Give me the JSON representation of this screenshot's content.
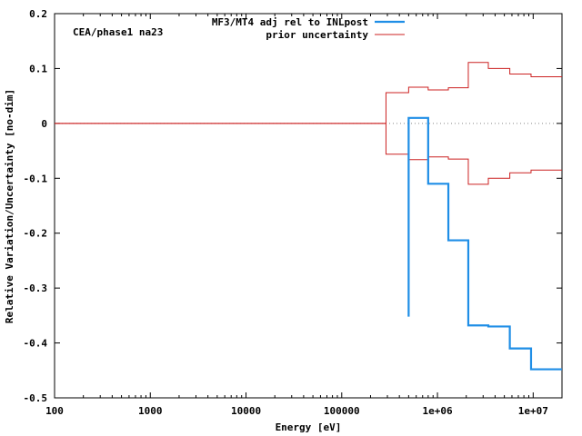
{
  "chart_data": {
    "type": "line",
    "title": "CEA/phase1 na23",
    "xlabel": "Energy [eV]",
    "ylabel": "Relative Variation/Uncertainty [no-dim]",
    "xscale": "log",
    "xlim": [
      100,
      20000000
    ],
    "ylim": [
      -0.5,
      0.2
    ],
    "x_ticks": [
      {
        "value": 100,
        "label": "100"
      },
      {
        "value": 1000,
        "label": "1000"
      },
      {
        "value": 10000,
        "label": "10000"
      },
      {
        "value": 100000,
        "label": "100000"
      },
      {
        "value": 1000000,
        "label": "1e+06"
      },
      {
        "value": 10000000,
        "label": "1e+07"
      }
    ],
    "y_ticks": [
      {
        "value": 0.2,
        "label": "0.2"
      },
      {
        "value": 0.1,
        "label": "0.1"
      },
      {
        "value": 0,
        "label": "0"
      },
      {
        "value": -0.1,
        "label": "-0.1"
      },
      {
        "value": -0.2,
        "label": "-0.2"
      },
      {
        "value": -0.3,
        "label": "-0.3"
      },
      {
        "value": -0.4,
        "label": "-0.4"
      },
      {
        "value": -0.5,
        "label": "-0.5"
      }
    ],
    "series": [
      {
        "name": "MF3/MT4 adj rel to INLpost",
        "color": "#1f8ee6",
        "edges": [
          500000,
          800000,
          1300000,
          2100000,
          3400000,
          5700000,
          9500000,
          20000000
        ],
        "values": [
          0.01,
          -0.11,
          -0.213,
          -0.368,
          -0.37,
          -0.41,
          -0.448
        ],
        "start_value": -0.352
      },
      {
        "name": "prior uncertainty",
        "color": "#cc2222",
        "edges": [
          100,
          290000,
          500000,
          800000,
          1300000,
          2100000,
          3400000,
          5700000,
          9500000,
          20000000
        ],
        "values": [
          0,
          0.056,
          0.066,
          0.061,
          0.065,
          0.111,
          0.1,
          0.09,
          0.085
        ]
      }
    ],
    "legend_position": "top-right"
  }
}
